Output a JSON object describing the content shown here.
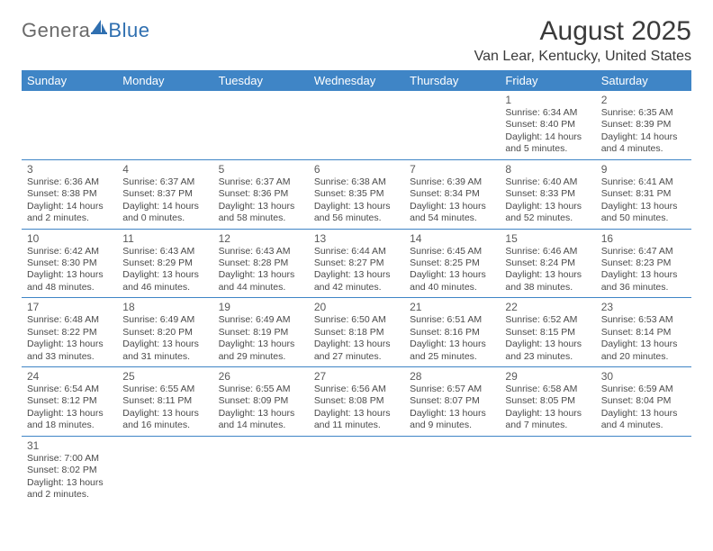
{
  "brand": {
    "part1": "Genera",
    "part2": "Blue"
  },
  "title": "August 2025",
  "location": "Van Lear, Kentucky, United States",
  "colors": {
    "header_bg": "#3f85c6",
    "header_text": "#ffffff",
    "rule": "#3f85c6",
    "body_text": "#4a4a4a",
    "logo_gray": "#6a6a6a",
    "logo_blue": "#2f6fb0"
  },
  "daysOfWeek": [
    "Sunday",
    "Monday",
    "Tuesday",
    "Wednesday",
    "Thursday",
    "Friday",
    "Saturday"
  ],
  "weeks": [
    [
      {
        "num": "",
        "lines": []
      },
      {
        "num": "",
        "lines": []
      },
      {
        "num": "",
        "lines": []
      },
      {
        "num": "",
        "lines": []
      },
      {
        "num": "",
        "lines": []
      },
      {
        "num": "1",
        "lines": [
          "Sunrise: 6:34 AM",
          "Sunset: 8:40 PM",
          "Daylight: 14 hours",
          "and 5 minutes."
        ]
      },
      {
        "num": "2",
        "lines": [
          "Sunrise: 6:35 AM",
          "Sunset: 8:39 PM",
          "Daylight: 14 hours",
          "and 4 minutes."
        ]
      }
    ],
    [
      {
        "num": "3",
        "lines": [
          "Sunrise: 6:36 AM",
          "Sunset: 8:38 PM",
          "Daylight: 14 hours",
          "and 2 minutes."
        ]
      },
      {
        "num": "4",
        "lines": [
          "Sunrise: 6:37 AM",
          "Sunset: 8:37 PM",
          "Daylight: 14 hours",
          "and 0 minutes."
        ]
      },
      {
        "num": "5",
        "lines": [
          "Sunrise: 6:37 AM",
          "Sunset: 8:36 PM",
          "Daylight: 13 hours",
          "and 58 minutes."
        ]
      },
      {
        "num": "6",
        "lines": [
          "Sunrise: 6:38 AM",
          "Sunset: 8:35 PM",
          "Daylight: 13 hours",
          "and 56 minutes."
        ]
      },
      {
        "num": "7",
        "lines": [
          "Sunrise: 6:39 AM",
          "Sunset: 8:34 PM",
          "Daylight: 13 hours",
          "and 54 minutes."
        ]
      },
      {
        "num": "8",
        "lines": [
          "Sunrise: 6:40 AM",
          "Sunset: 8:33 PM",
          "Daylight: 13 hours",
          "and 52 minutes."
        ]
      },
      {
        "num": "9",
        "lines": [
          "Sunrise: 6:41 AM",
          "Sunset: 8:31 PM",
          "Daylight: 13 hours",
          "and 50 minutes."
        ]
      }
    ],
    [
      {
        "num": "10",
        "lines": [
          "Sunrise: 6:42 AM",
          "Sunset: 8:30 PM",
          "Daylight: 13 hours",
          "and 48 minutes."
        ]
      },
      {
        "num": "11",
        "lines": [
          "Sunrise: 6:43 AM",
          "Sunset: 8:29 PM",
          "Daylight: 13 hours",
          "and 46 minutes."
        ]
      },
      {
        "num": "12",
        "lines": [
          "Sunrise: 6:43 AM",
          "Sunset: 8:28 PM",
          "Daylight: 13 hours",
          "and 44 minutes."
        ]
      },
      {
        "num": "13",
        "lines": [
          "Sunrise: 6:44 AM",
          "Sunset: 8:27 PM",
          "Daylight: 13 hours",
          "and 42 minutes."
        ]
      },
      {
        "num": "14",
        "lines": [
          "Sunrise: 6:45 AM",
          "Sunset: 8:25 PM",
          "Daylight: 13 hours",
          "and 40 minutes."
        ]
      },
      {
        "num": "15",
        "lines": [
          "Sunrise: 6:46 AM",
          "Sunset: 8:24 PM",
          "Daylight: 13 hours",
          "and 38 minutes."
        ]
      },
      {
        "num": "16",
        "lines": [
          "Sunrise: 6:47 AM",
          "Sunset: 8:23 PM",
          "Daylight: 13 hours",
          "and 36 minutes."
        ]
      }
    ],
    [
      {
        "num": "17",
        "lines": [
          "Sunrise: 6:48 AM",
          "Sunset: 8:22 PM",
          "Daylight: 13 hours",
          "and 33 minutes."
        ]
      },
      {
        "num": "18",
        "lines": [
          "Sunrise: 6:49 AM",
          "Sunset: 8:20 PM",
          "Daylight: 13 hours",
          "and 31 minutes."
        ]
      },
      {
        "num": "19",
        "lines": [
          "Sunrise: 6:49 AM",
          "Sunset: 8:19 PM",
          "Daylight: 13 hours",
          "and 29 minutes."
        ]
      },
      {
        "num": "20",
        "lines": [
          "Sunrise: 6:50 AM",
          "Sunset: 8:18 PM",
          "Daylight: 13 hours",
          "and 27 minutes."
        ]
      },
      {
        "num": "21",
        "lines": [
          "Sunrise: 6:51 AM",
          "Sunset: 8:16 PM",
          "Daylight: 13 hours",
          "and 25 minutes."
        ]
      },
      {
        "num": "22",
        "lines": [
          "Sunrise: 6:52 AM",
          "Sunset: 8:15 PM",
          "Daylight: 13 hours",
          "and 23 minutes."
        ]
      },
      {
        "num": "23",
        "lines": [
          "Sunrise: 6:53 AM",
          "Sunset: 8:14 PM",
          "Daylight: 13 hours",
          "and 20 minutes."
        ]
      }
    ],
    [
      {
        "num": "24",
        "lines": [
          "Sunrise: 6:54 AM",
          "Sunset: 8:12 PM",
          "Daylight: 13 hours",
          "and 18 minutes."
        ]
      },
      {
        "num": "25",
        "lines": [
          "Sunrise: 6:55 AM",
          "Sunset: 8:11 PM",
          "Daylight: 13 hours",
          "and 16 minutes."
        ]
      },
      {
        "num": "26",
        "lines": [
          "Sunrise: 6:55 AM",
          "Sunset: 8:09 PM",
          "Daylight: 13 hours",
          "and 14 minutes."
        ]
      },
      {
        "num": "27",
        "lines": [
          "Sunrise: 6:56 AM",
          "Sunset: 8:08 PM",
          "Daylight: 13 hours",
          "and 11 minutes."
        ]
      },
      {
        "num": "28",
        "lines": [
          "Sunrise: 6:57 AM",
          "Sunset: 8:07 PM",
          "Daylight: 13 hours",
          "and 9 minutes."
        ]
      },
      {
        "num": "29",
        "lines": [
          "Sunrise: 6:58 AM",
          "Sunset: 8:05 PM",
          "Daylight: 13 hours",
          "and 7 minutes."
        ]
      },
      {
        "num": "30",
        "lines": [
          "Sunrise: 6:59 AM",
          "Sunset: 8:04 PM",
          "Daylight: 13 hours",
          "and 4 minutes."
        ]
      }
    ],
    [
      {
        "num": "31",
        "lines": [
          "Sunrise: 7:00 AM",
          "Sunset: 8:02 PM",
          "Daylight: 13 hours",
          "and 2 minutes."
        ]
      },
      {
        "num": "",
        "lines": []
      },
      {
        "num": "",
        "lines": []
      },
      {
        "num": "",
        "lines": []
      },
      {
        "num": "",
        "lines": []
      },
      {
        "num": "",
        "lines": []
      },
      {
        "num": "",
        "lines": []
      }
    ]
  ]
}
